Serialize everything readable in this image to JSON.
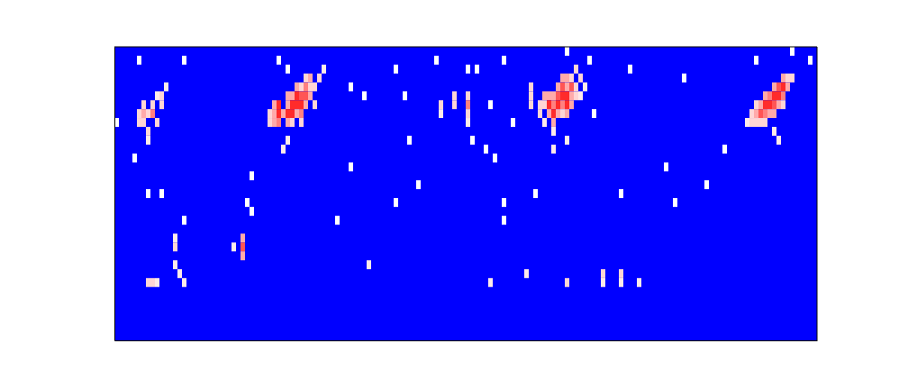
{
  "chart_data": {
    "type": "heatmap",
    "tick_labels": false,
    "xlim": [
      0,
      156
    ],
    "ylim": [
      0,
      33
    ],
    "color_range": [
      0,
      1
    ],
    "cells": [
      [
        5,
        25,
        0.5
      ],
      [
        5,
        24,
        0.5
      ],
      [
        6,
        26,
        0.5
      ],
      [
        6,
        25,
        0.6
      ],
      [
        6,
        24,
        0.5
      ],
      [
        7,
        25,
        0.5
      ],
      [
        7,
        23,
        0.5
      ],
      [
        8,
        26,
        0.5
      ],
      [
        8,
        25,
        0.7
      ],
      [
        9,
        24,
        0.5
      ],
      [
        10,
        27,
        0.5
      ],
      [
        10,
        26,
        0.5
      ],
      [
        11,
        28,
        0.45
      ],
      [
        9,
        27,
        0.45
      ],
      [
        7,
        22,
        0.45
      ],
      [
        0,
        24,
        0.4
      ],
      [
        34,
        25,
        0.5
      ],
      [
        34,
        24,
        0.5
      ],
      [
        35,
        26,
        0.6
      ],
      [
        35,
        25,
        0.6
      ],
      [
        35,
        24,
        0.6
      ],
      [
        36,
        26,
        0.9
      ],
      [
        36,
        25,
        0.9
      ],
      [
        36,
        24,
        0.7
      ],
      [
        37,
        25,
        0.6
      ],
      [
        38,
        27,
        0.6
      ],
      [
        38,
        26,
        0.6
      ],
      [
        38,
        25,
        0.9
      ],
      [
        38,
        24,
        0.6
      ],
      [
        39,
        27,
        0.6
      ],
      [
        39,
        26,
        0.9
      ],
      [
        39,
        25,
        0.9
      ],
      [
        39,
        24,
        0.5
      ],
      [
        40,
        28,
        0.6
      ],
      [
        40,
        27,
        0.9
      ],
      [
        40,
        26,
        0.9
      ],
      [
        40,
        25,
        0.6
      ],
      [
        41,
        28,
        0.5
      ],
      [
        41,
        27,
        0.8
      ],
      [
        41,
        26,
        0.9
      ],
      [
        41,
        25,
        0.7
      ],
      [
        41,
        24,
        0.5
      ],
      [
        42,
        29,
        0.5
      ],
      [
        42,
        28,
        0.7
      ],
      [
        42,
        27,
        0.8
      ],
      [
        42,
        26,
        0.6
      ],
      [
        43,
        29,
        0.6
      ],
      [
        43,
        28,
        0.5
      ],
      [
        43,
        27,
        0.6
      ],
      [
        44,
        28,
        0.5
      ],
      [
        44,
        26,
        0.5
      ],
      [
        45,
        29,
        0.5
      ],
      [
        46,
        30,
        0.45
      ],
      [
        37,
        21,
        0.45
      ],
      [
        38,
        22,
        0.45
      ],
      [
        72,
        26,
        0.5
      ],
      [
        72,
        25,
        0.45
      ],
      [
        75,
        27,
        0.5
      ],
      [
        75,
        26,
        0.5
      ],
      [
        78,
        27,
        0.5
      ],
      [
        78,
        26,
        0.7
      ],
      [
        78,
        25,
        0.5
      ],
      [
        78,
        24,
        0.45
      ],
      [
        79,
        22,
        0.4
      ],
      [
        92,
        28,
        0.5
      ],
      [
        92,
        27,
        0.5
      ],
      [
        92,
        26,
        0.5
      ],
      [
        94,
        26,
        0.5
      ],
      [
        94,
        25,
        0.5
      ],
      [
        95,
        27,
        0.6
      ],
      [
        95,
        26,
        0.5
      ],
      [
        95,
        24,
        0.45
      ],
      [
        96,
        27,
        0.6
      ],
      [
        96,
        26,
        0.9
      ],
      [
        96,
        25,
        0.6
      ],
      [
        97,
        27,
        0.6
      ],
      [
        97,
        26,
        0.7
      ],
      [
        97,
        25,
        0.9
      ],
      [
        97,
        24,
        0.6
      ],
      [
        97,
        23,
        0.45
      ],
      [
        98,
        28,
        0.6
      ],
      [
        98,
        27,
        0.8
      ],
      [
        98,
        26,
        0.9
      ],
      [
        98,
        25,
        0.6
      ],
      [
        99,
        29,
        0.6
      ],
      [
        99,
        28,
        0.8
      ],
      [
        99,
        27,
        0.9
      ],
      [
        99,
        26,
        0.7
      ],
      [
        99,
        25,
        0.5
      ],
      [
        100,
        29,
        0.6
      ],
      [
        100,
        28,
        0.6
      ],
      [
        100,
        27,
        0.9
      ],
      [
        100,
        26,
        0.9
      ],
      [
        100,
        25,
        0.6
      ],
      [
        101,
        29,
        0.5
      ],
      [
        101,
        28,
        0.8
      ],
      [
        101,
        27,
        0.6
      ],
      [
        101,
        26,
        0.6
      ],
      [
        102,
        30,
        0.5
      ],
      [
        102,
        28,
        0.5
      ],
      [
        102,
        27,
        0.5
      ],
      [
        103,
        29,
        0.5
      ],
      [
        103,
        27,
        0.45
      ],
      [
        104,
        28,
        0.45
      ],
      [
        97,
        21,
        0.45
      ],
      [
        100,
        22,
        0.45
      ],
      [
        140,
        24,
        0.45
      ],
      [
        141,
        25,
        0.5
      ],
      [
        141,
        24,
        0.5
      ],
      [
        142,
        26,
        0.5
      ],
      [
        142,
        25,
        0.6
      ],
      [
        142,
        24,
        0.5
      ],
      [
        143,
        26,
        0.6
      ],
      [
        143,
        25,
        0.8
      ],
      [
        143,
        24,
        0.5
      ],
      [
        144,
        27,
        0.6
      ],
      [
        144,
        26,
        0.9
      ],
      [
        144,
        25,
        0.7
      ],
      [
        144,
        24,
        0.5
      ],
      [
        145,
        27,
        0.7
      ],
      [
        145,
        26,
        0.9
      ],
      [
        145,
        25,
        0.6
      ],
      [
        146,
        28,
        0.6
      ],
      [
        146,
        27,
        0.9
      ],
      [
        146,
        26,
        0.8
      ],
      [
        146,
        25,
        0.6
      ],
      [
        147,
        28,
        0.8
      ],
      [
        147,
        27,
        0.9
      ],
      [
        147,
        26,
        0.6
      ],
      [
        148,
        29,
        0.6
      ],
      [
        148,
        28,
        0.9
      ],
      [
        148,
        27,
        0.7
      ],
      [
        148,
        26,
        0.5
      ],
      [
        149,
        29,
        0.5
      ],
      [
        149,
        28,
        0.6
      ],
      [
        150,
        29,
        0.5
      ],
      [
        147,
        22,
        0.45
      ],
      [
        146,
        23,
        0.45
      ],
      [
        7,
        6,
        0.5
      ],
      [
        8,
        6,
        0.5
      ],
      [
        9,
        6,
        0.45
      ],
      [
        15,
        6,
        0.45
      ],
      [
        13,
        11,
        0.45
      ],
      [
        13,
        10,
        0.5
      ],
      [
        13,
        8,
        0.45
      ],
      [
        14,
        7,
        0.45
      ],
      [
        28,
        11,
        0.6
      ],
      [
        28,
        10,
        0.8
      ],
      [
        28,
        9,
        0.6
      ],
      [
        26,
        10,
        0.45
      ],
      [
        56,
        8,
        0.45
      ],
      [
        83,
        6,
        0.45
      ],
      [
        91,
        7,
        0.45
      ],
      [
        100,
        6,
        0.5
      ],
      [
        108,
        7,
        0.5
      ],
      [
        108,
        6,
        0.45
      ],
      [
        112,
        7,
        0.5
      ],
      [
        112,
        6,
        0.45
      ],
      [
        116,
        6,
        0.45
      ],
      [
        7,
        16,
        0.4
      ],
      [
        10,
        16,
        0.4
      ],
      [
        15,
        13,
        0.4
      ],
      [
        29,
        15,
        0.4
      ],
      [
        30,
        14,
        0.4
      ],
      [
        30,
        18,
        0.4
      ],
      [
        49,
        13,
        0.4
      ],
      [
        52,
        19,
        0.4
      ],
      [
        62,
        15,
        0.4
      ],
      [
        65,
        22,
        0.4
      ],
      [
        67,
        17,
        0.4
      ],
      [
        86,
        15,
        0.4
      ],
      [
        86,
        13,
        0.4
      ],
      [
        93,
        16,
        0.4
      ],
      [
        112,
        16,
        0.4
      ],
      [
        124,
        15,
        0.4
      ],
      [
        122,
        19,
        0.4
      ],
      [
        131,
        17,
        0.4
      ],
      [
        135,
        21,
        0.4
      ],
      [
        82,
        21,
        0.4
      ],
      [
        84,
        20,
        0.4
      ],
      [
        4,
        20,
        0.4
      ],
      [
        5,
        31,
        0.4
      ],
      [
        15,
        31,
        0.4
      ],
      [
        36,
        31,
        0.4
      ],
      [
        38,
        30,
        0.4
      ],
      [
        62,
        30,
        0.4
      ],
      [
        71,
        31,
        0.4
      ],
      [
        80,
        30,
        0.4
      ],
      [
        86,
        31,
        0.4
      ],
      [
        100,
        32,
        0.4
      ],
      [
        105,
        31,
        0.4
      ],
      [
        114,
        30,
        0.4
      ],
      [
        126,
        29,
        0.4
      ],
      [
        142,
        31,
        0.4
      ],
      [
        150,
        32,
        0.4
      ],
      [
        154,
        31,
        0.4
      ],
      [
        55,
        27,
        0.4
      ],
      [
        52,
        28,
        0.4
      ],
      [
        64,
        27,
        0.4
      ],
      [
        78,
        30,
        0.4
      ],
      [
        88,
        24,
        0.4
      ],
      [
        106,
        25,
        0.4
      ],
      [
        83,
        26,
        0.4
      ]
    ]
  }
}
